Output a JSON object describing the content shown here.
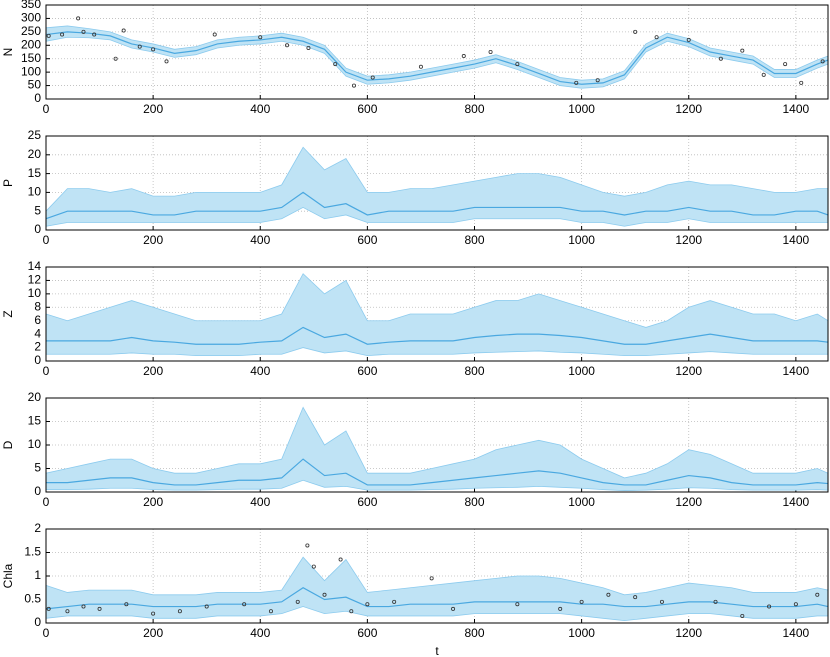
{
  "chart_data": [
    {
      "type": "line",
      "ylabel": "N",
      "x": [
        0,
        40,
        80,
        120,
        160,
        200,
        240,
        280,
        320,
        360,
        400,
        440,
        480,
        520,
        560,
        600,
        640,
        680,
        720,
        760,
        800,
        840,
        880,
        920,
        960,
        1000,
        1040,
        1080,
        1120,
        1160,
        1200,
        1240,
        1280,
        1320,
        1360,
        1400,
        1440,
        1460
      ],
      "series": [
        {
          "color": "#4aa8e0",
          "values": [
            240,
            250,
            245,
            235,
            205,
            190,
            170,
            180,
            205,
            215,
            220,
            230,
            215,
            185,
            100,
            70,
            75,
            85,
            100,
            115,
            130,
            150,
            125,
            95,
            65,
            55,
            60,
            90,
            190,
            230,
            210,
            175,
            160,
            145,
            95,
            95,
            130,
            145
          ]
        }
      ],
      "band": {
        "color": "#bfe3f5",
        "upper": [
          265,
          272,
          262,
          250,
          220,
          205,
          185,
          195,
          220,
          230,
          235,
          245,
          230,
          200,
          115,
          85,
          90,
          100,
          115,
          130,
          145,
          165,
          140,
          110,
          80,
          70,
          75,
          105,
          205,
          245,
          225,
          190,
          175,
          160,
          110,
          110,
          145,
          160
        ],
        "lower": [
          215,
          230,
          228,
          220,
          190,
          175,
          155,
          165,
          190,
          200,
          205,
          215,
          200,
          170,
          85,
          55,
          60,
          70,
          85,
          100,
          115,
          135,
          110,
          80,
          50,
          40,
          45,
          75,
          175,
          215,
          195,
          160,
          145,
          130,
          80,
          80,
          115,
          130
        ]
      },
      "points": {
        "color": "#333333",
        "x": [
          5,
          30,
          60,
          70,
          90,
          130,
          145,
          175,
          200,
          225,
          315,
          400,
          450,
          490,
          540,
          575,
          610,
          700,
          780,
          830,
          880,
          990,
          1030,
          1100,
          1140,
          1200,
          1260,
          1300,
          1340,
          1380,
          1410,
          1450
        ],
        "y": [
          235,
          240,
          300,
          250,
          240,
          150,
          255,
          195,
          185,
          140,
          240,
          230,
          200,
          190,
          130,
          50,
          80,
          120,
          160,
          175,
          130,
          60,
          70,
          250,
          230,
          220,
          150,
          180,
          90,
          130,
          60,
          140
        ]
      },
      "xlim": [
        0,
        1460
      ],
      "xticks": [
        0,
        200,
        400,
        600,
        800,
        1000,
        1200,
        1400
      ],
      "ylim": [
        0,
        350
      ],
      "yticks": [
        0,
        50,
        100,
        150,
        200,
        250,
        300,
        350
      ],
      "grid": true
    },
    {
      "type": "line",
      "ylabel": "P",
      "x": [
        0,
        40,
        80,
        120,
        160,
        200,
        240,
        280,
        320,
        360,
        400,
        440,
        480,
        520,
        560,
        600,
        640,
        680,
        720,
        760,
        800,
        840,
        880,
        920,
        960,
        1000,
        1040,
        1080,
        1120,
        1160,
        1200,
        1240,
        1280,
        1320,
        1360,
        1400,
        1440,
        1460
      ],
      "series": [
        {
          "color": "#4aa8e0",
          "values": [
            3,
            5,
            5,
            5,
            5,
            4,
            4,
            5,
            5,
            5,
            5,
            6,
            10,
            6,
            7,
            4,
            5,
            5,
            5,
            5,
            6,
            6,
            6,
            6,
            6,
            5,
            5,
            4,
            5,
            5,
            6,
            5,
            5,
            4,
            4,
            5,
            5,
            4
          ]
        }
      ],
      "band": {
        "color": "#bfe3f5",
        "upper": [
          5,
          11,
          11,
          10,
          11,
          9,
          9,
          10,
          10,
          10,
          10,
          12,
          22,
          16,
          19,
          10,
          10,
          11,
          11,
          12,
          13,
          14,
          15,
          15,
          14,
          12,
          10,
          9,
          10,
          12,
          13,
          12,
          12,
          11,
          10,
          10,
          11,
          11
        ],
        "lower": [
          1,
          2,
          2,
          2,
          2,
          2,
          2,
          2,
          2,
          2,
          2,
          3,
          6,
          3,
          4,
          2,
          2,
          2,
          2,
          2,
          3,
          3,
          3,
          3,
          3,
          2,
          2,
          1,
          2,
          2,
          3,
          2,
          2,
          2,
          2,
          2,
          2,
          2
        ]
      },
      "xlim": [
        0,
        1460
      ],
      "xticks": [
        0,
        200,
        400,
        600,
        800,
        1000,
        1200,
        1400
      ],
      "ylim": [
        0,
        25
      ],
      "yticks": [
        0,
        5,
        10,
        15,
        20,
        25
      ],
      "grid": true
    },
    {
      "type": "line",
      "ylabel": "Z",
      "x": [
        0,
        40,
        80,
        120,
        160,
        200,
        240,
        280,
        320,
        360,
        400,
        440,
        480,
        520,
        560,
        600,
        640,
        680,
        720,
        760,
        800,
        840,
        880,
        920,
        960,
        1000,
        1040,
        1080,
        1120,
        1160,
        1200,
        1240,
        1280,
        1320,
        1360,
        1400,
        1440,
        1460
      ],
      "series": [
        {
          "color": "#4aa8e0",
          "values": [
            3,
            3,
            3,
            3,
            3.5,
            3,
            2.8,
            2.5,
            2.5,
            2.5,
            2.8,
            3,
            5,
            3.5,
            4,
            2.5,
            2.8,
            3,
            3,
            3,
            3.5,
            3.8,
            4,
            4,
            3.8,
            3.5,
            3,
            2.5,
            2.5,
            3,
            3.5,
            4,
            3.5,
            3,
            3,
            3,
            3,
            2.8
          ]
        }
      ],
      "band": {
        "color": "#bfe3f5",
        "upper": [
          7,
          6,
          7,
          8,
          9,
          8,
          7,
          6,
          6,
          6,
          6,
          7,
          13,
          10,
          12,
          6,
          6,
          7,
          7,
          7,
          8,
          9,
          9,
          10,
          9,
          8,
          7,
          6,
          5,
          6,
          8,
          9,
          8,
          7,
          7,
          6,
          7,
          6
        ],
        "lower": [
          1,
          1,
          1,
          1,
          1.2,
          1,
          1,
          0.8,
          0.8,
          0.8,
          1,
          1,
          2,
          1.2,
          1.5,
          0.8,
          1,
          1,
          1,
          1,
          1.2,
          1.3,
          1.4,
          1.5,
          1.3,
          1.2,
          1,
          0.8,
          0.8,
          1,
          1.2,
          1.4,
          1.2,
          1,
          1,
          1,
          1,
          1
        ]
      },
      "xlim": [
        0,
        1460
      ],
      "xticks": [
        0,
        200,
        400,
        600,
        800,
        1000,
        1200,
        1400
      ],
      "ylim": [
        0,
        14
      ],
      "yticks": [
        0,
        2,
        4,
        6,
        8,
        10,
        12,
        14
      ],
      "grid": true
    },
    {
      "type": "line",
      "ylabel": "D",
      "x": [
        0,
        40,
        80,
        120,
        160,
        200,
        240,
        280,
        320,
        360,
        400,
        440,
        480,
        520,
        560,
        600,
        640,
        680,
        720,
        760,
        800,
        840,
        880,
        920,
        960,
        1000,
        1040,
        1080,
        1120,
        1160,
        1200,
        1240,
        1280,
        1320,
        1360,
        1400,
        1440,
        1460
      ],
      "series": [
        {
          "color": "#4aa8e0",
          "values": [
            2,
            2,
            2.5,
            3,
            3,
            2,
            1.5,
            1.5,
            2,
            2.5,
            2.5,
            3,
            7,
            3.5,
            4,
            1.5,
            1.5,
            1.5,
            2,
            2.5,
            3,
            3.5,
            4,
            4.5,
            4,
            3,
            2,
            1.5,
            1.5,
            2.5,
            3.5,
            3,
            2,
            1.5,
            1.5,
            1.5,
            2,
            1.8
          ]
        }
      ],
      "band": {
        "color": "#bfe3f5",
        "upper": [
          4,
          5,
          6,
          7,
          7,
          5,
          4,
          4,
          5,
          6,
          6,
          7,
          18,
          10,
          13,
          4,
          4,
          4,
          5,
          6,
          7,
          9,
          10,
          11,
          10,
          7,
          5,
          3,
          4,
          6,
          9,
          8,
          6,
          4,
          4,
          4,
          5,
          4
        ],
        "lower": [
          0.5,
          0.5,
          0.6,
          0.8,
          0.8,
          0.5,
          0.4,
          0.4,
          0.5,
          0.6,
          0.6,
          0.8,
          2.5,
          1,
          1.2,
          0.4,
          0.4,
          0.4,
          0.5,
          0.6,
          0.8,
          0.9,
          1,
          1.2,
          1,
          0.8,
          0.5,
          0.3,
          0.4,
          0.6,
          0.9,
          0.8,
          0.5,
          0.4,
          0.4,
          0.4,
          0.5,
          0.4
        ]
      },
      "xlim": [
        0,
        1460
      ],
      "xticks": [
        0,
        200,
        400,
        600,
        800,
        1000,
        1200,
        1400
      ],
      "ylim": [
        0,
        20
      ],
      "yticks": [
        0,
        5,
        10,
        15,
        20
      ],
      "grid": true
    },
    {
      "type": "line",
      "ylabel": "Chla",
      "xlabel": "t",
      "x": [
        0,
        40,
        80,
        120,
        160,
        200,
        240,
        280,
        320,
        360,
        400,
        440,
        480,
        520,
        560,
        600,
        640,
        680,
        720,
        760,
        800,
        840,
        880,
        920,
        960,
        1000,
        1040,
        1080,
        1120,
        1160,
        1200,
        1240,
        1280,
        1320,
        1360,
        1400,
        1440,
        1460
      ],
      "series": [
        {
          "color": "#4aa8e0",
          "values": [
            0.3,
            0.35,
            0.4,
            0.4,
            0.4,
            0.35,
            0.35,
            0.35,
            0.4,
            0.4,
            0.4,
            0.45,
            0.75,
            0.5,
            0.55,
            0.35,
            0.35,
            0.4,
            0.4,
            0.4,
            0.45,
            0.45,
            0.45,
            0.45,
            0.45,
            0.4,
            0.4,
            0.35,
            0.35,
            0.4,
            0.45,
            0.45,
            0.4,
            0.35,
            0.35,
            0.35,
            0.4,
            0.35
          ]
        }
      ],
      "band": {
        "color": "#bfe3f5",
        "upper": [
          0.8,
          0.65,
          0.7,
          0.7,
          0.7,
          0.6,
          0.6,
          0.6,
          0.65,
          0.65,
          0.65,
          0.7,
          1.4,
          0.9,
          1.35,
          0.65,
          0.7,
          0.75,
          0.8,
          0.85,
          0.9,
          0.95,
          1.0,
          1.0,
          0.95,
          0.85,
          0.75,
          0.6,
          0.65,
          0.75,
          0.85,
          0.8,
          0.75,
          0.65,
          0.65,
          0.65,
          0.75,
          0.7
        ],
        "lower": [
          0.1,
          0.15,
          0.15,
          0.15,
          0.15,
          0.1,
          0.1,
          0.1,
          0.15,
          0.15,
          0.15,
          0.2,
          0.35,
          0.2,
          0.25,
          0.15,
          0.15,
          0.15,
          0.15,
          0.15,
          0.2,
          0.2,
          0.2,
          0.2,
          0.2,
          0.15,
          0.1,
          0.05,
          0.1,
          0.15,
          0.2,
          0.2,
          0.15,
          0.1,
          0.1,
          0.1,
          0.15,
          0.15
        ]
      },
      "points": {
        "color": "#333333",
        "x": [
          5,
          40,
          70,
          100,
          150,
          200,
          250,
          300,
          370,
          420,
          470,
          488,
          500,
          520,
          550,
          570,
          600,
          650,
          720,
          760,
          880,
          960,
          1000,
          1050,
          1100,
          1150,
          1250,
          1300,
          1350,
          1400,
          1440
        ],
        "y": [
          0.3,
          0.25,
          0.35,
          0.3,
          0.4,
          0.2,
          0.25,
          0.35,
          0.4,
          0.25,
          0.45,
          1.65,
          1.2,
          0.6,
          1.35,
          0.25,
          0.4,
          0.45,
          0.95,
          0.3,
          0.4,
          0.3,
          0.45,
          0.6,
          0.55,
          0.45,
          0.45,
          0.15,
          0.35,
          0.4,
          0.6
        ]
      },
      "xlim": [
        0,
        1460
      ],
      "xticks": [
        0,
        200,
        400,
        600,
        800,
        1000,
        1200,
        1400
      ],
      "ylim": [
        0,
        2
      ],
      "yticks": [
        0,
        0.5,
        1,
        1.5,
        2
      ],
      "grid": true
    }
  ]
}
